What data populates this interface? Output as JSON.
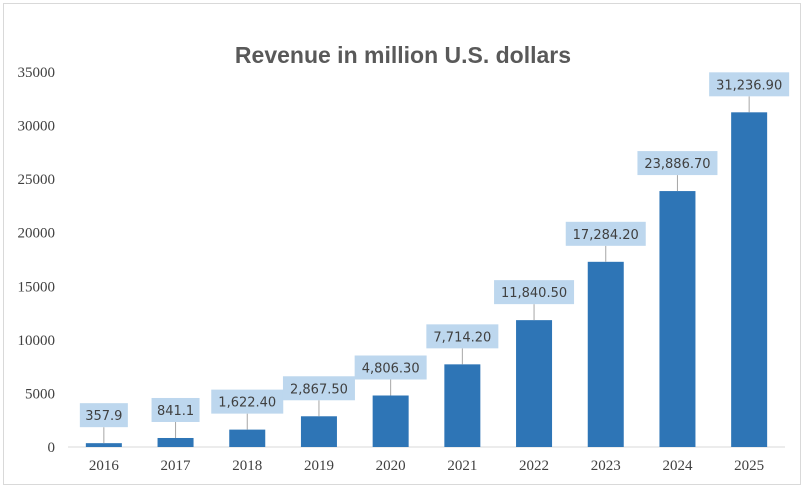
{
  "chart_data": {
    "type": "bar",
    "title": "Revenue in million U.S. dollars",
    "categories": [
      "2016",
      "2017",
      "2018",
      "2019",
      "2020",
      "2021",
      "2022",
      "2023",
      "2024",
      "2025"
    ],
    "values": [
      357.9,
      841.1,
      1622.4,
      2867.5,
      4806.3,
      7714.2,
      11840.5,
      17284.2,
      23886.7,
      31236.9
    ],
    "data_labels": [
      "357.9",
      "841.1",
      "1,622.40",
      "2,867.50",
      "4,806.30",
      "7,714.20",
      "11,840.50",
      "17,284.20",
      "23,886.70",
      "31,236.90"
    ],
    "ylim": [
      0,
      35000
    ],
    "yticks": [
      0,
      5000,
      10000,
      15000,
      20000,
      25000,
      30000,
      35000
    ],
    "xlabel": "",
    "ylabel": "",
    "grid": false,
    "legend": "none",
    "colors": {
      "bar": "#2e75b6",
      "label_box": "#bdd7ee",
      "leader": "#a6a6a6"
    }
  }
}
